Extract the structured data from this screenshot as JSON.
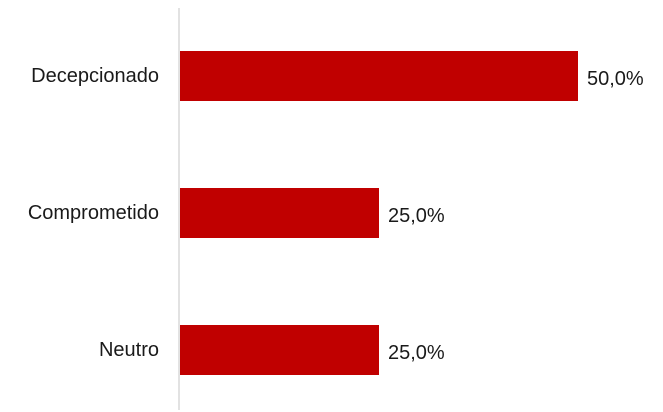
{
  "chart_data": {
    "type": "bar",
    "orientation": "horizontal",
    "categories": [
      "Decepcionado",
      "Comprometido",
      "Neutro"
    ],
    "values": [
      50.0,
      25.0,
      25.0
    ],
    "data_labels": [
      "50,0%",
      "25,0%",
      "25,0%"
    ],
    "title": "",
    "xlabel": "",
    "ylabel": "",
    "xlim": [
      0,
      50
    ],
    "grid": false,
    "legend": "none",
    "colors": {
      "bar": "#C00000",
      "axis": "#D9D9D9",
      "text": "#1a1a1a"
    }
  }
}
